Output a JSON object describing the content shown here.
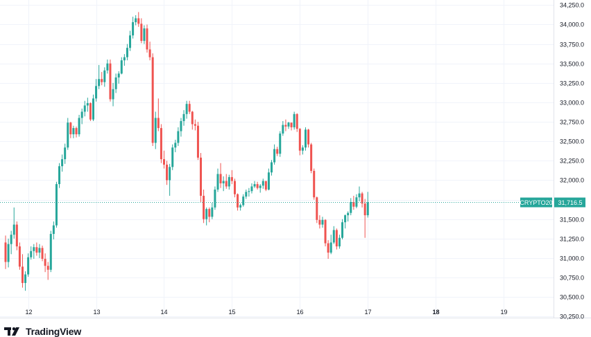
{
  "chart_data": {
    "type": "candlestick",
    "symbol": "CRYPTO20",
    "last_price_label": "31,716.5",
    "y_ticks": [
      "34,250.0",
      "34,000.0",
      "33,750.0",
      "33,500.0",
      "33,250.0",
      "33,000.0",
      "32,750.0",
      "32,500.0",
      "32,250.0",
      "32,000.0",
      "31,750.0",
      "31,500.0",
      "31,250.0",
      "31,000.0",
      "30,750.0",
      "30,500.0",
      "30,250.0"
    ],
    "y_tick_values": [
      34250,
      34000,
      33750,
      33500,
      33250,
      33000,
      32750,
      32500,
      32250,
      32000,
      31750,
      31500,
      31250,
      31000,
      30750,
      30500,
      30250
    ],
    "ylim": [
      30235,
      34315
    ],
    "x_labels": [
      {
        "text": "12",
        "index": 8,
        "bold": false
      },
      {
        "text": "13",
        "index": 32,
        "bold": false
      },
      {
        "text": "14",
        "index": 56,
        "bold": false
      },
      {
        "text": "15",
        "index": 80,
        "bold": false
      },
      {
        "text": "16",
        "index": 104,
        "bold": false
      },
      {
        "text": "17",
        "index": 128,
        "bold": false
      },
      {
        "text": "18",
        "index": 152,
        "bold": true
      },
      {
        "text": "19",
        "index": 176,
        "bold": false
      }
    ],
    "up_color": "#26a69a",
    "down_color": "#ef5350",
    "last_price_color": "#26a69a",
    "candles": [
      [
        31200,
        31290,
        30860,
        30950
      ],
      [
        30950,
        31250,
        30880,
        31180
      ],
      [
        31180,
        31350,
        31050,
        31300
      ],
      [
        31300,
        31650,
        31250,
        31430
      ],
      [
        31430,
        31470,
        31100,
        31150
      ],
      [
        31150,
        31200,
        30850,
        30890
      ],
      [
        30890,
        31050,
        30620,
        30680
      ],
      [
        30680,
        30830,
        30580,
        30790
      ],
      [
        30790,
        31060,
        30760,
        31010
      ],
      [
        31010,
        31150,
        30980,
        31090
      ],
      [
        31090,
        31180,
        30990,
        31140
      ],
      [
        31140,
        31200,
        31030,
        31070
      ],
      [
        31070,
        31180,
        31000,
        31130
      ],
      [
        31130,
        31160,
        30960,
        30990
      ],
      [
        30990,
        31060,
        30820,
        30900
      ],
      [
        30900,
        30950,
        30720,
        30850
      ],
      [
        30850,
        31350,
        30820,
        31310
      ],
      [
        31310,
        31470,
        31240,
        31420
      ],
      [
        31420,
        31980,
        31390,
        31950
      ],
      [
        31950,
        32220,
        31900,
        32180
      ],
      [
        32180,
        32330,
        32110,
        32270
      ],
      [
        32270,
        32470,
        32210,
        32420
      ],
      [
        32420,
        32800,
        32390,
        32740
      ],
      [
        32740,
        32750,
        32540,
        32590
      ],
      [
        32590,
        32700,
        32540,
        32670
      ],
      [
        32670,
        32690,
        32550,
        32590
      ],
      [
        32590,
        32840,
        32560,
        32800
      ],
      [
        32800,
        32920,
        32720,
        32880
      ],
      [
        32880,
        33020,
        32820,
        32960
      ],
      [
        32960,
        33060,
        32880,
        32990
      ],
      [
        32990,
        33000,
        32760,
        32780
      ],
      [
        32780,
        33100,
        32760,
        33050
      ],
      [
        33050,
        33300,
        33010,
        33210
      ],
      [
        33210,
        33480,
        33170,
        33300
      ],
      [
        33300,
        33390,
        33220,
        33260
      ],
      [
        33260,
        33450,
        33200,
        33410
      ],
      [
        33410,
        33550,
        33370,
        33500
      ],
      [
        33500,
        33550,
        33010,
        33040
      ],
      [
        33040,
        33250,
        32950,
        33170
      ],
      [
        33170,
        33370,
        33120,
        33320
      ],
      [
        33320,
        33400,
        33240,
        33370
      ],
      [
        33370,
        33580,
        33360,
        33540
      ],
      [
        33540,
        33620,
        33470,
        33580
      ],
      [
        33580,
        33750,
        33540,
        33700
      ],
      [
        33700,
        33920,
        33660,
        33860
      ],
      [
        33860,
        34100,
        33820,
        34030
      ],
      [
        34030,
        34120,
        33990,
        34080
      ],
      [
        34080,
        34160,
        33970,
        34010
      ],
      [
        34010,
        34080,
        33760,
        33790
      ],
      [
        33790,
        33990,
        33750,
        33950
      ],
      [
        33950,
        34000,
        33640,
        33680
      ],
      [
        33680,
        33780,
        33540,
        33580
      ],
      [
        33580,
        33630,
        32440,
        32480
      ],
      [
        32480,
        32880,
        32400,
        32800
      ],
      [
        32800,
        33050,
        32630,
        32670
      ],
      [
        32670,
        32720,
        32220,
        32270
      ],
      [
        32270,
        32380,
        32150,
        32200
      ],
      [
        32200,
        32250,
        31940,
        32000
      ],
      [
        32000,
        32210,
        31800,
        32170
      ],
      [
        32170,
        32460,
        32130,
        32420
      ],
      [
        32420,
        32520,
        32360,
        32480
      ],
      [
        32480,
        32680,
        32440,
        32630
      ],
      [
        32630,
        32800,
        32560,
        32760
      ],
      [
        32760,
        32900,
        32700,
        32850
      ],
      [
        32850,
        33020,
        32790,
        32980
      ],
      [
        32980,
        33020,
        32850,
        32880
      ],
      [
        32880,
        32890,
        32650,
        32720
      ],
      [
        32720,
        32780,
        32640,
        32700
      ],
      [
        32700,
        32750,
        32260,
        32290
      ],
      [
        32290,
        32350,
        31720,
        31800
      ],
      [
        31800,
        31880,
        31450,
        31500
      ],
      [
        31500,
        31650,
        31420,
        31630
      ],
      [
        31630,
        31650,
        31460,
        31530
      ],
      [
        31530,
        31710,
        31500,
        31650
      ],
      [
        31650,
        31920,
        31620,
        31880
      ],
      [
        31880,
        32150,
        31850,
        32080
      ],
      [
        32080,
        32220,
        31900,
        31960
      ],
      [
        31960,
        32050,
        31860,
        31990
      ],
      [
        31990,
        32080,
        31890,
        31920
      ],
      [
        31920,
        32070,
        31880,
        32040
      ],
      [
        32040,
        32130,
        31950,
        31990
      ],
      [
        31990,
        32020,
        31780,
        31820
      ],
      [
        31820,
        31830,
        31610,
        31650
      ],
      [
        31650,
        31700,
        31610,
        31680
      ],
      [
        31680,
        31820,
        31660,
        31790
      ],
      [
        31790,
        31880,
        31760,
        31850
      ],
      [
        31850,
        31900,
        31790,
        31860
      ],
      [
        31860,
        31960,
        31830,
        31920
      ],
      [
        31920,
        31990,
        31900,
        31950
      ],
      [
        31950,
        31980,
        31880,
        31900
      ],
      [
        31900,
        31950,
        31840,
        31930
      ],
      [
        31930,
        32020,
        31890,
        31990
      ],
      [
        31990,
        31980,
        31860,
        31880
      ],
      [
        31880,
        32150,
        31870,
        32100
      ],
      [
        32100,
        32260,
        32060,
        32230
      ],
      [
        32230,
        32460,
        32200,
        32400
      ],
      [
        32400,
        32430,
        32310,
        32340
      ],
      [
        32340,
        32630,
        32300,
        32600
      ],
      [
        32600,
        32760,
        32570,
        32710
      ],
      [
        32710,
        32780,
        32630,
        32690
      ],
      [
        32690,
        32750,
        32660,
        32740
      ],
      [
        32740,
        32720,
        32640,
        32680
      ],
      [
        32680,
        32880,
        32650,
        32850
      ],
      [
        32850,
        32860,
        32620,
        32660
      ],
      [
        32660,
        32670,
        32320,
        32380
      ],
      [
        32380,
        32450,
        32330,
        32420
      ],
      [
        32420,
        32680,
        32380,
        32650
      ],
      [
        32650,
        32660,
        32420,
        32460
      ],
      [
        32460,
        32480,
        32090,
        32120
      ],
      [
        32120,
        32150,
        31750,
        31780
      ],
      [
        31780,
        31790,
        31450,
        31490
      ],
      [
        31490,
        31550,
        31380,
        31430
      ],
      [
        31430,
        31530,
        31390,
        31490
      ],
      [
        31490,
        31500,
        31150,
        31190
      ],
      [
        31190,
        31230,
        30990,
        31070
      ],
      [
        31070,
        31300,
        31050,
        31200
      ],
      [
        31200,
        31410,
        31180,
        31360
      ],
      [
        31360,
        31380,
        31110,
        31150
      ],
      [
        31150,
        31300,
        31120,
        31260
      ],
      [
        31260,
        31500,
        31240,
        31460
      ],
      [
        31460,
        31560,
        31380,
        31550
      ],
      [
        31550,
        31600,
        31470,
        31580
      ],
      [
        31580,
        31770,
        31550,
        31720
      ],
      [
        31720,
        31800,
        31620,
        31660
      ],
      [
        31660,
        31820,
        31640,
        31780
      ],
      [
        31780,
        31920,
        31730,
        31830
      ],
      [
        31830,
        31850,
        31650,
        31700
      ],
      [
        31700,
        31760,
        31260,
        31550
      ],
      [
        31550,
        31850,
        31520,
        31716.5
      ]
    ]
  },
  "brand": {
    "name": "TradingView",
    "logo_icon": "tradingview-logo-icon"
  }
}
